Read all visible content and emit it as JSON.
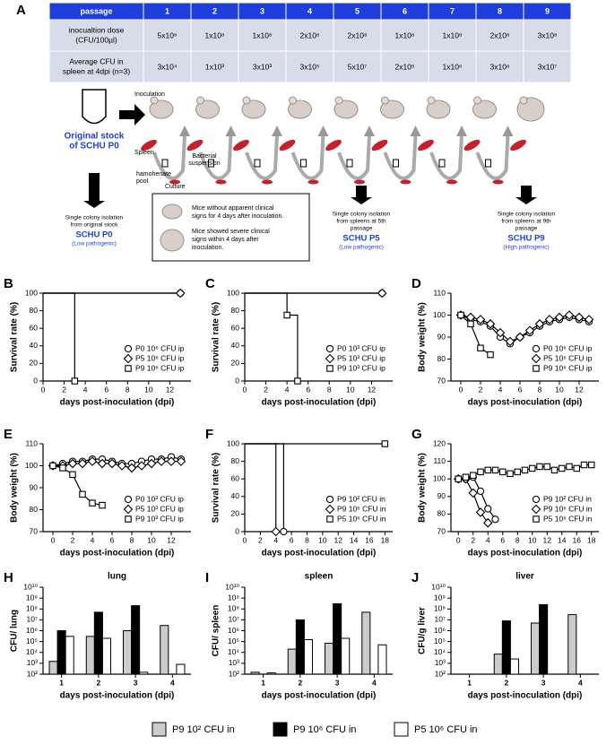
{
  "panel_a": {
    "label": "A",
    "table": {
      "header": [
        "passage",
        "1",
        "2",
        "3",
        "4",
        "5",
        "6",
        "7",
        "8",
        "9"
      ],
      "rows": [
        [
          [
            "inocualtion dose",
            "(CFU/100µl)"
          ],
          "5x10⁶",
          "1x10⁸",
          "1x10⁸",
          "2x10⁸",
          "2x10⁸",
          "1x10⁸",
          "1x10⁸",
          "2x10⁸",
          "3x10⁸"
        ],
        [
          [
            "Average CFU in",
            "spleen at 4dpi (n=3)"
          ],
          "3x10⁴",
          "1x10³",
          "3x10³",
          "3x10⁵",
          "5x10⁷",
          "2x10⁵",
          "1x10⁶",
          "3x10⁸",
          "3x10⁷"
        ]
      ]
    },
    "diagram": {
      "inoculation": "Inoculation",
      "original_stock": [
        "Original stock",
        "of SCHU P0"
      ],
      "spleen": "Spleen",
      "bacterial_suspension": [
        "Bacterial",
        "suspension"
      ],
      "homogenate_pool": [
        "hamohenate",
        "pool"
      ],
      "culture": "Culture",
      "isolations": [
        {
          "text": [
            "Single colony isolation",
            "from original stock"
          ],
          "strain": "SCHU P0",
          "pathogenicity": "(Low pathogenic)"
        },
        {
          "text": [
            "Single colony isolation",
            "from spleens at 5th",
            "passage"
          ],
          "strain": "SCHU P5",
          "pathogenicity": "(Low pathogenic)"
        },
        {
          "text": [
            "Single colony isolation",
            "from spleens at 9th",
            "passage"
          ],
          "strain": "SCHU P9",
          "pathogenicity": "(High pathogenic)"
        }
      ],
      "legend": [
        [
          "Mice without apparent clinical",
          "signs for 4 days after inoculation."
        ],
        [
          "Mice showed severe clinical",
          "signs within 4 days after",
          "inoculation."
        ]
      ]
    }
  },
  "chart_data": [
    {
      "type": "line",
      "panel": "B",
      "xlabel": "days post-inoculation (dpi)",
      "ylabel": "Survival rate (%)",
      "markers": "steps",
      "xlim": [
        0,
        14
      ],
      "xticks": [
        0,
        2,
        4,
        6,
        8,
        10,
        12
      ],
      "ylim": [
        0,
        100
      ],
      "yticks": [
        0,
        20,
        40,
        60,
        80,
        100
      ],
      "series": [
        {
          "name": "P0 10⁶ CFU ip",
          "marker": "circle",
          "color": "#000000",
          "x": [
            0,
            13
          ],
          "values": [
            100,
            100
          ]
        },
        {
          "name": "P5 10⁶ CFU ip",
          "marker": "diamond",
          "color": "#000000",
          "x": [
            0,
            13
          ],
          "values": [
            100,
            100
          ]
        },
        {
          "name": "P9 10⁶ CFU ip",
          "marker": "square",
          "color": "#000000",
          "x": [
            0,
            3,
            3
          ],
          "values": [
            100,
            100,
            0
          ]
        }
      ]
    },
    {
      "type": "line",
      "panel": "C",
      "xlabel": "days post-inoculation (dpi)",
      "ylabel": "Survival rate (%)",
      "markers": "steps",
      "xlim": [
        0,
        14
      ],
      "xticks": [
        0,
        2,
        4,
        6,
        8,
        10,
        12
      ],
      "ylim": [
        0,
        100
      ],
      "yticks": [
        0,
        20,
        40,
        60,
        80,
        100
      ],
      "series": [
        {
          "name": "P0 10³ CFU ip",
          "marker": "circle",
          "color": "#000000",
          "x": [
            0,
            13
          ],
          "values": [
            100,
            100
          ]
        },
        {
          "name": "P5 10³ CFU ip",
          "marker": "diamond",
          "color": "#000000",
          "x": [
            0,
            13
          ],
          "values": [
            100,
            100
          ]
        },
        {
          "name": "P9 10³ CFU ip",
          "marker": "square",
          "color": "#000000",
          "x": [
            0,
            4,
            4,
            5,
            5
          ],
          "values": [
            100,
            100,
            75,
            75,
            0
          ]
        }
      ]
    },
    {
      "type": "line",
      "panel": "D",
      "xlabel": "days post-inoculation (dpi)",
      "ylabel": "Body weight (%)",
      "markers": "all",
      "xlim": [
        -1,
        14
      ],
      "xticks": [
        0,
        2,
        4,
        6,
        8,
        10,
        12
      ],
      "ylim": [
        70,
        110
      ],
      "yticks": [
        70,
        80,
        90,
        100,
        110
      ],
      "series": [
        {
          "name": "P0 10⁶ CFU ip",
          "marker": "circle",
          "color": "#000000",
          "x": [
            0,
            1,
            2,
            3,
            4,
            5,
            6,
            7,
            8,
            9,
            10,
            11,
            12,
            13
          ],
          "values": [
            100,
            98,
            97,
            95,
            90,
            87,
            90,
            92,
            95,
            97,
            98,
            99,
            98,
            97
          ]
        },
        {
          "name": "P5 10⁶ CFU ip",
          "marker": "diamond",
          "color": "#000000",
          "x": [
            0,
            1,
            2,
            3,
            4,
            5,
            6,
            7,
            8,
            9,
            10,
            11,
            12,
            13
          ],
          "values": [
            100,
            99,
            98,
            96,
            92,
            88,
            90,
            93,
            96,
            98,
            99,
            100,
            99,
            98
          ]
        },
        {
          "name": "P9 10⁶ CFU ip",
          "marker": "square",
          "color": "#000000",
          "x": [
            0,
            1,
            2,
            3
          ],
          "values": [
            100,
            96,
            85,
            82
          ]
        }
      ]
    },
    {
      "type": "line",
      "panel": "E",
      "xlabel": "days post-inoculation (dpi)",
      "ylabel": "Body weight (%)",
      "markers": "all",
      "xlim": [
        -1,
        14
      ],
      "xticks": [
        0,
        2,
        4,
        6,
        8,
        10,
        12
      ],
      "ylim": [
        70,
        110
      ],
      "yticks": [
        70,
        80,
        90,
        100,
        110
      ],
      "series": [
        {
          "name": "P0 10³ CFU ip",
          "marker": "circle",
          "color": "#000000",
          "x": [
            0,
            1,
            2,
            3,
            4,
            5,
            6,
            7,
            8,
            9,
            10,
            11,
            12,
            13
          ],
          "values": [
            100,
            101,
            102,
            102,
            103,
            103,
            102,
            101,
            101,
            102,
            103,
            103,
            104,
            103
          ]
        },
        {
          "name": "P5 10³ CFU ip",
          "marker": "diamond",
          "color": "#000000",
          "x": [
            0,
            1,
            2,
            3,
            4,
            5,
            6,
            7,
            8,
            9,
            10,
            11,
            12,
            13
          ],
          "values": [
            100,
            100,
            101,
            101,
            102,
            101,
            101,
            100,
            99,
            100,
            101,
            102,
            102,
            102
          ]
        },
        {
          "name": "P9 10³ CFU ip",
          "marker": "square",
          "color": "#000000",
          "x": [
            0,
            1,
            2,
            3,
            4,
            5
          ],
          "values": [
            100,
            99,
            96,
            87,
            83,
            82
          ]
        }
      ]
    },
    {
      "type": "line",
      "panel": "F",
      "xlabel": "days post-inoculation (dpi)",
      "ylabel": "Survival rate (%)",
      "markers": "steps",
      "xlim": [
        0,
        19
      ],
      "xticks": [
        0,
        2,
        4,
        6,
        8,
        10,
        12,
        14,
        16,
        18
      ],
      "ylim": [
        0,
        100
      ],
      "yticks": [
        0,
        20,
        40,
        60,
        80,
        100
      ],
      "series": [
        {
          "name": "P9 10² CFU in",
          "marker": "circle",
          "color": "#000000",
          "x": [
            0,
            5,
            5
          ],
          "values": [
            100,
            100,
            0
          ]
        },
        {
          "name": "P9 10⁶ CFU in",
          "marker": "diamond",
          "color": "#000000",
          "x": [
            0,
            4,
            4
          ],
          "values": [
            100,
            100,
            0
          ]
        },
        {
          "name": "P5 10⁶ CFU in",
          "marker": "square",
          "color": "#000000",
          "x": [
            0,
            18
          ],
          "values": [
            100,
            100
          ]
        }
      ]
    },
    {
      "type": "line",
      "panel": "G",
      "xlabel": "days post-inoculation (dpi)",
      "ylabel": "Body weight (%)",
      "markers": "all",
      "xlim": [
        -1,
        19
      ],
      "xticks": [
        0,
        2,
        4,
        6,
        8,
        10,
        12,
        14,
        16,
        18
      ],
      "ylim": [
        70,
        120
      ],
      "yticks": [
        70,
        80,
        90,
        100,
        110,
        120
      ],
      "series": [
        {
          "name": "P9 10² CFU in",
          "marker": "circle",
          "color": "#000000",
          "x": [
            0,
            1,
            2,
            3,
            4,
            5
          ],
          "values": [
            100,
            100,
            101,
            93,
            83,
            77
          ]
        },
        {
          "name": "P9 10⁶ CFU in",
          "marker": "diamond",
          "color": "#000000",
          "x": [
            0,
            1,
            2,
            3,
            4
          ],
          "values": [
            100,
            100,
            92,
            81,
            75
          ]
        },
        {
          "name": "P5 10⁶ CFU in",
          "marker": "square",
          "color": "#000000",
          "x": [
            0,
            1,
            2,
            3,
            4,
            5,
            6,
            7,
            8,
            9,
            10,
            11,
            12,
            13,
            14,
            15,
            16,
            17,
            18
          ],
          "values": [
            100,
            101,
            102,
            104,
            105,
            105,
            104,
            103,
            104,
            105,
            106,
            107,
            107,
            105,
            106,
            107,
            106,
            108,
            108
          ]
        }
      ]
    },
    {
      "type": "bar",
      "panel": "H",
      "title": "lung",
      "xlabel": "days post-inoculation (dpi)",
      "ylabel": "CFU/ lung",
      "log": true,
      "categories": [
        "1",
        "2",
        "3",
        "4"
      ],
      "ylim": [
        100,
        10000000000
      ],
      "yticks": [
        {
          "value": 100,
          "label": "10²"
        },
        {
          "value": 1000,
          "label": "10³"
        },
        {
          "value": 10000,
          "label": "10⁴"
        },
        {
          "value": 100000,
          "label": "10⁵"
        },
        {
          "value": 1000000,
          "label": "10⁶"
        },
        {
          "value": 10000000,
          "label": "10⁷"
        },
        {
          "value": 100000000,
          "label": "10⁸"
        },
        {
          "value": 1000000000,
          "label": "10⁹"
        },
        {
          "value": 10000000000,
          "label": "10¹⁰"
        }
      ],
      "series": [
        {
          "name": "P9 10² CFU in",
          "color": "#cccccc",
          "values": [
            1500,
            300000,
            1000000,
            3000000
          ]
        },
        {
          "name": "P9 10⁶ CFU in",
          "color": "#000000",
          "values": [
            1000000,
            50000000,
            200000000,
            null
          ]
        },
        {
          "name": "P5 10⁶ CFU in",
          "color": "#ffffff",
          "values": [
            300000,
            200000,
            150,
            800
          ]
        }
      ]
    },
    {
      "type": "bar",
      "panel": "I",
      "title": "spleen",
      "xlabel": "days post-inoculation (dpi)",
      "ylabel": "CFU/ spleen",
      "log": true,
      "categories": [
        "1",
        "2",
        "3",
        "4"
      ],
      "ylim": [
        100,
        10000000000
      ],
      "yticks": [
        {
          "value": 100,
          "label": "10²"
        },
        {
          "value": 1000,
          "label": "10³"
        },
        {
          "value": 10000,
          "label": "10⁴"
        },
        {
          "value": 100000,
          "label": "10⁵"
        },
        {
          "value": 1000000,
          "label": "10⁶"
        },
        {
          "value": 10000000,
          "label": "10⁷"
        },
        {
          "value": 100000000,
          "label": "10⁸"
        },
        {
          "value": 1000000000,
          "label": "10⁹"
        },
        {
          "value": 10000000000,
          "label": "10¹⁰"
        }
      ],
      "series": [
        {
          "name": "P9 10² CFU in",
          "color": "#cccccc",
          "values": [
            150,
            20000,
            70000,
            50000000
          ]
        },
        {
          "name": "P9 10⁶ CFU in",
          "color": "#000000",
          "values": [
            null,
            10000000,
            300000000,
            null
          ]
        },
        {
          "name": "P5 10⁶ CFU in",
          "color": "#ffffff",
          "values": [
            130,
            150000,
            200000,
            50000
          ]
        }
      ]
    },
    {
      "type": "bar",
      "panel": "J",
      "title": "liver",
      "xlabel": "days post-inoculation (dpi)",
      "ylabel": "CFU/g liver",
      "log": true,
      "categories": [
        "1",
        "2",
        "3",
        "4"
      ],
      "ylim": [
        100,
        10000000000
      ],
      "yticks": [
        {
          "value": 100,
          "label": "10²"
        },
        {
          "value": 1000,
          "label": "10³"
        },
        {
          "value": 10000,
          "label": "10⁴"
        },
        {
          "value": 100000,
          "label": "10⁵"
        },
        {
          "value": 1000000,
          "label": "10⁶"
        },
        {
          "value": 10000000,
          "label": "10⁷"
        },
        {
          "value": 100000000,
          "label": "10⁸"
        },
        {
          "value": 1000000000,
          "label": "10⁹"
        },
        {
          "value": 10000000000,
          "label": "10¹⁰"
        }
      ],
      "series": [
        {
          "name": "P9 10² CFU in",
          "color": "#cccccc",
          "values": [
            null,
            7000,
            5000000,
            30000000
          ]
        },
        {
          "name": "P9 10⁶ CFU in",
          "color": "#000000",
          "values": [
            null,
            8000000,
            250000000,
            null
          ]
        },
        {
          "name": "P5 10⁶ CFU in",
          "color": "#ffffff",
          "values": [
            null,
            2500,
            null,
            null
          ]
        }
      ]
    }
  ]
}
